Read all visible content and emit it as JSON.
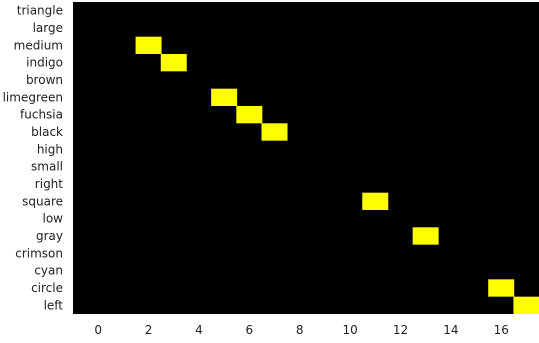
{
  "chart_data": {
    "type": "heatmap",
    "rows": [
      "triangle",
      "large",
      "medium",
      "indigo",
      "brown",
      "limegreen",
      "fuchsia",
      "black",
      "high",
      "small",
      "right",
      "square",
      "low",
      "gray",
      "crimson",
      "cyan",
      "circle",
      "left"
    ],
    "x_ticks": [
      0,
      2,
      4,
      6,
      8,
      10,
      12,
      14,
      16
    ],
    "xlim": [
      -1,
      17.5
    ],
    "cells": [
      {
        "row": "medium",
        "x": 2
      },
      {
        "row": "indigo",
        "x": 3
      },
      {
        "row": "limegreen",
        "x": 5
      },
      {
        "row": "fuchsia",
        "x": 6
      },
      {
        "row": "black",
        "x": 7
      },
      {
        "row": "square",
        "x": 11
      },
      {
        "row": "gray",
        "x": 13
      },
      {
        "row": "circle",
        "x": 16
      },
      {
        "row": "left",
        "x": 17
      }
    ],
    "background_color": "#000000",
    "cell_color": "#ffff00",
    "grid": false,
    "legend": "none"
  }
}
